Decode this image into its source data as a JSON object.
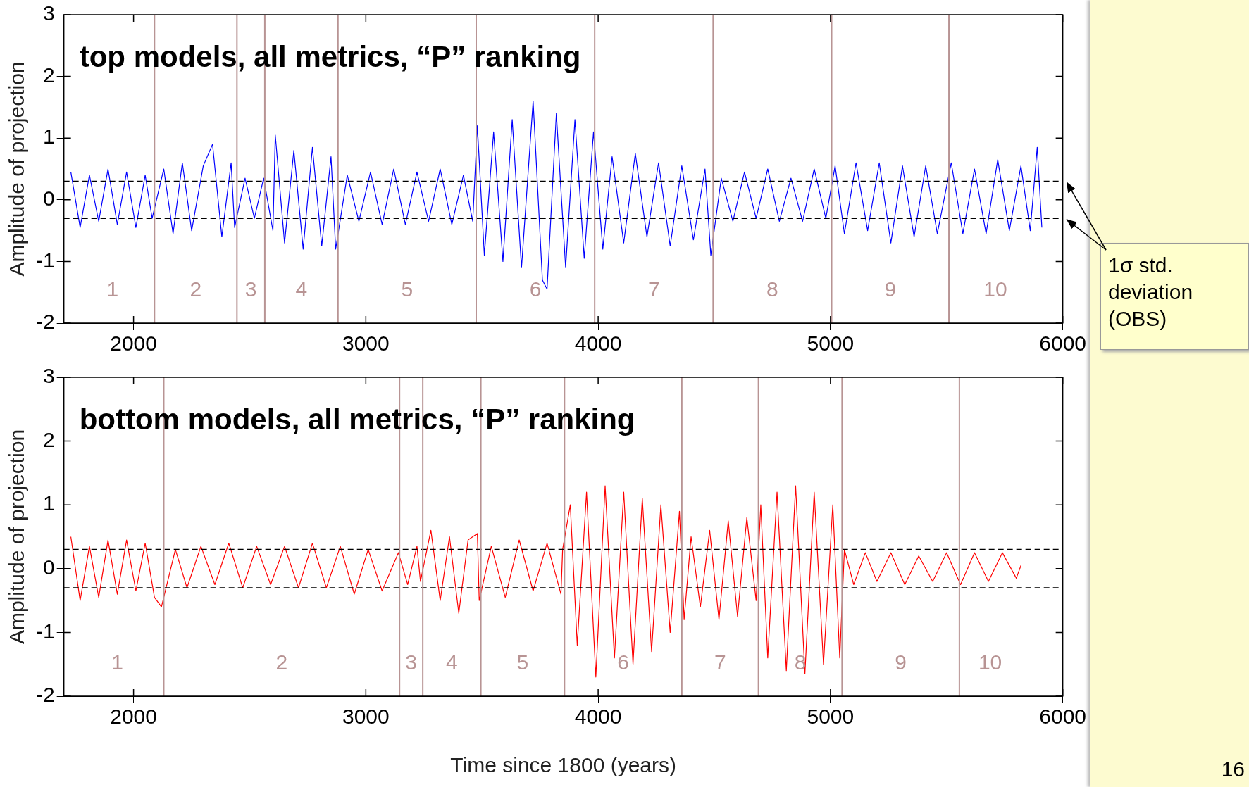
{
  "chart_data": [
    {
      "type": "line",
      "title": "top models, all metrics, “P” ranking",
      "ylabel": "Amplitude of projection",
      "xlim": [
        1700,
        6000
      ],
      "xticks": [
        2000,
        3000,
        4000,
        5000,
        6000
      ],
      "ylim": [
        -2,
        3
      ],
      "yticks": [
        -2,
        -1,
        0,
        1,
        2,
        3
      ],
      "grid": false,
      "legend": false,
      "marker": "none",
      "line_style": "solid",
      "series": [
        {
          "color": "#0000ff",
          "x": [
            1730,
            1770,
            1810,
            1850,
            1890,
            1930,
            1970,
            2010,
            2050,
            2080,
            2130,
            2170,
            2210,
            2250,
            2300,
            2340,
            2380,
            2420,
            2435,
            2480,
            2520,
            2560,
            2600,
            2610,
            2650,
            2690,
            2730,
            2770,
            2810,
            2850,
            2870,
            2920,
            2970,
            3020,
            3070,
            3120,
            3170,
            3220,
            3270,
            3320,
            3370,
            3420,
            3460,
            3480,
            3510,
            3550,
            3590,
            3630,
            3670,
            3720,
            3760,
            3780,
            3820,
            3860,
            3900,
            3940,
            3980,
            4020,
            4060,
            4110,
            4160,
            4210,
            4260,
            4310,
            4360,
            4410,
            4460,
            4485,
            4530,
            4580,
            4630,
            4680,
            4730,
            4780,
            4830,
            4880,
            4930,
            4980,
            5020,
            5060,
            5110,
            5160,
            5210,
            5260,
            5310,
            5360,
            5410,
            5460,
            5520,
            5570,
            5620,
            5670,
            5720,
            5770,
            5820,
            5860,
            5890,
            5910
          ],
          "values": [
            0.45,
            -0.45,
            0.4,
            -0.35,
            0.5,
            -0.4,
            0.45,
            -0.45,
            0.4,
            -0.3,
            0.5,
            -0.55,
            0.6,
            -0.5,
            0.55,
            0.9,
            -0.6,
            0.6,
            -0.45,
            0.35,
            -0.3,
            0.35,
            -0.5,
            1.05,
            -0.7,
            0.8,
            -0.8,
            0.85,
            -0.75,
            0.7,
            -0.8,
            0.4,
            -0.35,
            0.45,
            -0.4,
            0.5,
            -0.4,
            0.45,
            -0.35,
            0.5,
            -0.4,
            0.4,
            -0.35,
            1.2,
            -0.9,
            1.1,
            -1.0,
            1.3,
            -1.1,
            1.6,
            -1.3,
            -1.45,
            1.4,
            -1.1,
            1.3,
            -0.95,
            1.1,
            -0.8,
            0.7,
            -0.7,
            0.75,
            -0.6,
            0.6,
            -0.75,
            0.55,
            -0.65,
            0.5,
            -0.9,
            0.35,
            -0.35,
            0.45,
            -0.3,
            0.5,
            -0.35,
            0.35,
            -0.35,
            0.5,
            -0.3,
            0.55,
            -0.55,
            0.6,
            -0.5,
            0.6,
            -0.7,
            0.55,
            -0.6,
            0.55,
            -0.55,
            0.6,
            -0.55,
            0.5,
            -0.55,
            0.65,
            -0.5,
            0.55,
            -0.5,
            0.85,
            -0.45
          ]
        }
      ],
      "ref_lines": [
        {
          "axis": "y",
          "value": 0.3,
          "color": "#000000",
          "line_style": "dashed"
        },
        {
          "axis": "y",
          "value": -0.3,
          "color": "#000000",
          "line_style": "dashed"
        },
        {
          "axis": "x",
          "value": 2090,
          "color": "#b89494"
        },
        {
          "axis": "x",
          "value": 2445,
          "color": "#b89494"
        },
        {
          "axis": "x",
          "value": 2565,
          "color": "#b89494"
        },
        {
          "axis": "x",
          "value": 2880,
          "color": "#b89494"
        },
        {
          "axis": "x",
          "value": 3475,
          "color": "#b89494"
        },
        {
          "axis": "x",
          "value": 3985,
          "color": "#b89494"
        },
        {
          "axis": "x",
          "value": 4495,
          "color": "#b89494"
        },
        {
          "axis": "x",
          "value": 5005,
          "color": "#b89494"
        },
        {
          "axis": "x",
          "value": 5510,
          "color": "#b89494"
        }
      ],
      "annotations": [
        "1",
        "2",
        "3",
        "4",
        "5",
        "6",
        "7",
        "8",
        "9",
        "10",
        "1σ std. deviation (OBS)"
      ]
    },
    {
      "type": "line",
      "title": "bottom models, all metrics, “P” ranking",
      "ylabel": "Amplitude of projection",
      "xlabel": "Time since 1800 (years)",
      "xlim": [
        1700,
        6000
      ],
      "xticks": [
        2000,
        3000,
        4000,
        5000,
        6000
      ],
      "ylim": [
        -2,
        3
      ],
      "yticks": [
        -2,
        -1,
        0,
        1,
        2,
        3
      ],
      "grid": false,
      "legend": false,
      "marker": "none",
      "line_style": "solid",
      "series": [
        {
          "color": "#ff0000",
          "x": [
            1730,
            1770,
            1810,
            1850,
            1890,
            1930,
            1970,
            2010,
            2050,
            2090,
            2120,
            2180,
            2230,
            2290,
            2350,
            2410,
            2470,
            2530,
            2590,
            2650,
            2710,
            2770,
            2830,
            2890,
            2950,
            3010,
            3070,
            3140,
            3180,
            3220,
            3235,
            3280,
            3320,
            3360,
            3400,
            3440,
            3480,
            3488,
            3540,
            3600,
            3660,
            3720,
            3780,
            3840,
            3847,
            3880,
            3910,
            3950,
            3990,
            4030,
            4070,
            4110,
            4150,
            4190,
            4230,
            4270,
            4310,
            4350,
            4370,
            4400,
            4440,
            4480,
            4520,
            4560,
            4600,
            4640,
            4680,
            4700,
            4730,
            4770,
            4810,
            4850,
            4890,
            4930,
            4970,
            5010,
            5040,
            5060,
            5100,
            5150,
            5200,
            5260,
            5320,
            5380,
            5440,
            5500,
            5560,
            5620,
            5680,
            5740,
            5800,
            5820
          ],
          "values": [
            0.5,
            -0.5,
            0.35,
            -0.45,
            0.45,
            -0.4,
            0.45,
            -0.35,
            0.4,
            -0.45,
            -0.6,
            0.3,
            -0.3,
            0.35,
            -0.25,
            0.4,
            -0.3,
            0.35,
            -0.25,
            0.35,
            -0.3,
            0.4,
            -0.3,
            0.35,
            -0.4,
            0.3,
            -0.35,
            0.25,
            -0.25,
            0.35,
            -0.2,
            0.6,
            -0.5,
            0.5,
            -0.7,
            0.45,
            0.55,
            -0.5,
            0.35,
            -0.45,
            0.45,
            -0.35,
            0.4,
            -0.4,
            0.3,
            1.0,
            -1.2,
            1.2,
            -1.7,
            1.3,
            -1.4,
            1.2,
            -1.5,
            1.1,
            -1.3,
            1.0,
            -1.0,
            0.9,
            -0.8,
            0.5,
            -0.6,
            0.6,
            -0.8,
            0.75,
            -0.75,
            0.8,
            -0.5,
            1.0,
            -1.4,
            1.2,
            -1.6,
            1.3,
            -1.65,
            1.2,
            -1.5,
            1.0,
            -1.4,
            0.3,
            -0.25,
            0.25,
            -0.2,
            0.25,
            -0.25,
            0.2,
            -0.2,
            0.25,
            -0.25,
            0.25,
            -0.2,
            0.25,
            -0.15,
            0.05
          ]
        }
      ],
      "ref_lines": [
        {
          "axis": "y",
          "value": 0.3,
          "color": "#000000",
          "line_style": "dashed"
        },
        {
          "axis": "y",
          "value": -0.3,
          "color": "#000000",
          "line_style": "dashed"
        },
        {
          "axis": "x",
          "value": 2130,
          "color": "#b89494"
        },
        {
          "axis": "x",
          "value": 3145,
          "color": "#b89494"
        },
        {
          "axis": "x",
          "value": 3245,
          "color": "#b89494"
        },
        {
          "axis": "x",
          "value": 3495,
          "color": "#b89494"
        },
        {
          "axis": "x",
          "value": 3855,
          "color": "#b89494"
        },
        {
          "axis": "x",
          "value": 4360,
          "color": "#b89494"
        },
        {
          "axis": "x",
          "value": 4690,
          "color": "#b89494"
        },
        {
          "axis": "x",
          "value": 5050,
          "color": "#b89494"
        },
        {
          "axis": "x",
          "value": 5555,
          "color": "#b89494"
        }
      ],
      "annotations": [
        "1",
        "2",
        "3",
        "4",
        "5",
        "6",
        "7",
        "8",
        "9",
        "10",
        "16"
      ]
    }
  ]
}
